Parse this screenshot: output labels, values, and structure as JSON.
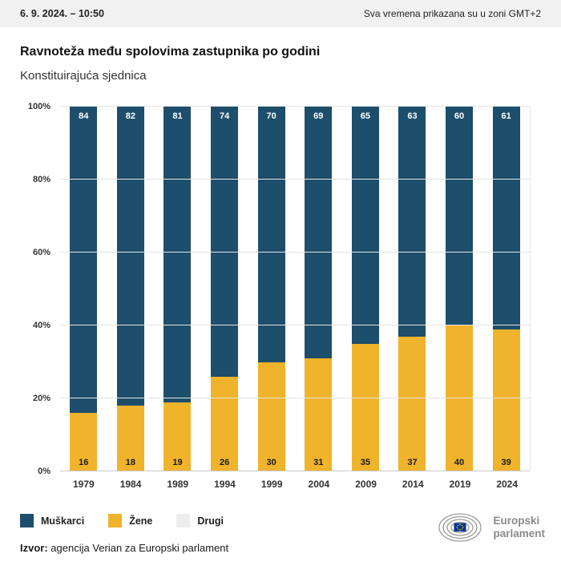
{
  "topbar": {
    "datetime": "6. 9. 2024. – 10:50",
    "timezone_note": "Sva vremena prikazana su u zoni GMT+2"
  },
  "title": "Ravnoteža među spolovima zastupnika po godini",
  "subtitle": "Konstituirajuća sjednica",
  "chart_data": {
    "type": "bar",
    "stacked": true,
    "title": "Ravnoteža među spolovima zastupnika po godini",
    "subtitle": "Konstituirajuća sjednica",
    "categories": [
      "1979",
      "1984",
      "1989",
      "1994",
      "1999",
      "2004",
      "2009",
      "2014",
      "2019",
      "2024"
    ],
    "series": [
      {
        "name": "Muškarci",
        "color": "#1d4e6b",
        "values": [
          84,
          82,
          81,
          74,
          70,
          69,
          65,
          63,
          60,
          61
        ]
      },
      {
        "name": "Žene",
        "color": "#f0b32c",
        "values": [
          16,
          18,
          19,
          26,
          30,
          31,
          35,
          37,
          40,
          39
        ]
      },
      {
        "name": "Drugi",
        "color": "#ededed",
        "values": [
          0,
          0,
          0,
          0,
          0,
          0,
          0,
          0,
          0,
          0
        ]
      }
    ],
    "ylim": [
      0,
      100
    ],
    "yticks": [
      0,
      20,
      40,
      60,
      80,
      100
    ],
    "ytick_suffix": "%",
    "grid": true,
    "legend_position": "bottom"
  },
  "legend": [
    {
      "label": "Muškarci",
      "color": "#1d4e6b"
    },
    {
      "label": "Žene",
      "color": "#f0b32c"
    },
    {
      "label": "Drugi",
      "color": "#ededed"
    }
  ],
  "source": {
    "label": "Izvor:",
    "text": " agencija Verian za Europski parlament"
  },
  "logo": {
    "line1": "Europski",
    "line2": "parlament"
  }
}
